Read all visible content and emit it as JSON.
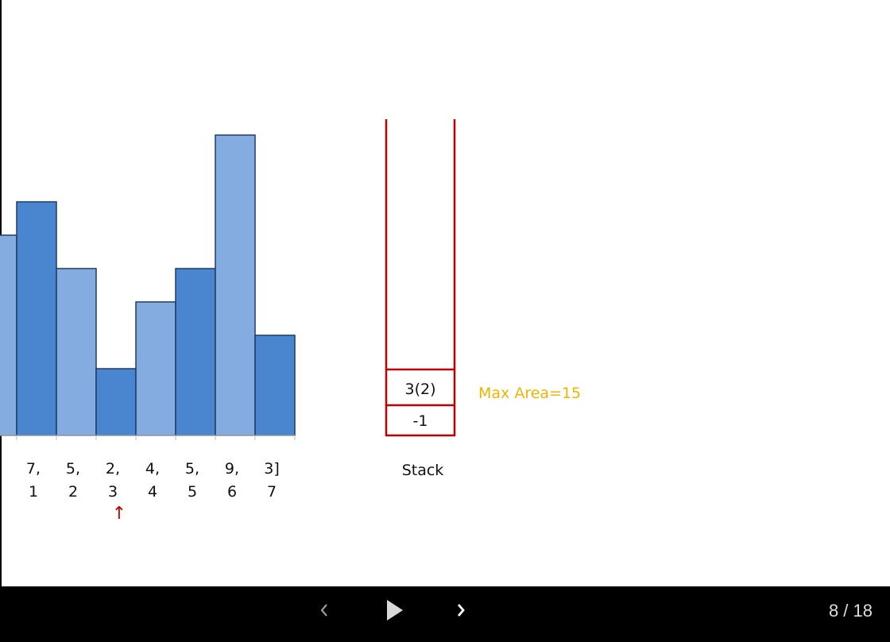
{
  "chart_data": {
    "type": "bar",
    "values": [
      null,
      7,
      5,
      2,
      4,
      5,
      9,
      3
    ],
    "value_labels": [
      "",
      "7,",
      "5,",
      "2,",
      "4,",
      "5,",
      "9,",
      "3]"
    ],
    "index_labels": [
      "",
      "1",
      "2",
      "3",
      "4",
      "5",
      "6",
      "7"
    ],
    "ylim": [
      0,
      9
    ],
    "grid": false,
    "colors": {
      "dark": "#4a86d0",
      "light": "#84ace0",
      "outline": "#1f3b63"
    }
  },
  "pointer": {
    "glyph": "↑",
    "index": 3,
    "color": "#c00000"
  },
  "stack": {
    "label": "Stack",
    "items": [
      "3(2)",
      "-1"
    ],
    "border_color": "#c00000"
  },
  "max_area": {
    "text": "Max Area=15",
    "color": "#f0b400"
  },
  "nav": {
    "prev_icon": "chevron-left",
    "play_icon": "play",
    "next_icon": "chevron-right",
    "page_counter": "8 / 18"
  }
}
